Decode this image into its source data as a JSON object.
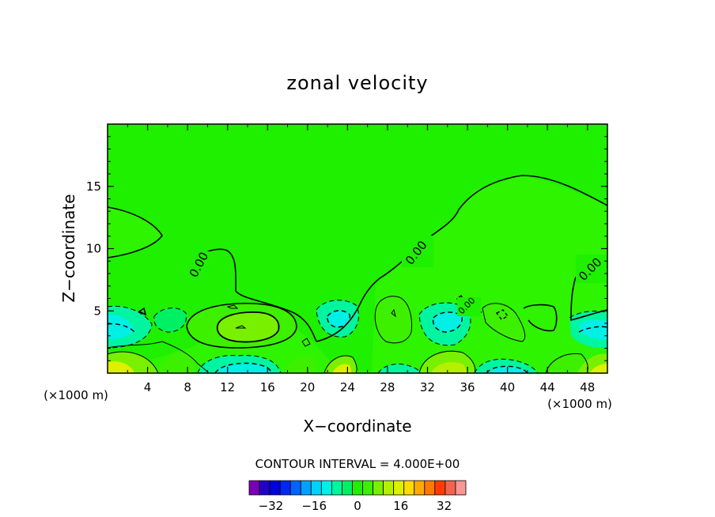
{
  "chart_data": {
    "type": "contour",
    "title": "zonal velocity",
    "xlabel": "X−coordinate",
    "ylabel": "Z−coordinate",
    "x_unit_label": "(×1000 m)",
    "xlim": [
      0,
      50
    ],
    "ylim": [
      0,
      20
    ],
    "x_ticks": [
      4,
      8,
      12,
      16,
      20,
      24,
      28,
      32,
      36,
      40,
      44,
      48
    ],
    "y_ticks": [
      5,
      10,
      15
    ],
    "contour_interval_text": "CONTOUR INTERVAL = 4.000E+00",
    "contour_interval": 4.0,
    "contour_labels": [
      "0.00",
      "0.00",
      "0.00",
      "0.00"
    ],
    "colorbar": {
      "tick_labels": [
        "−32",
        "−16",
        "0",
        "16",
        "32"
      ],
      "tick_values": [
        -32,
        -16,
        0,
        16,
        32
      ],
      "levels": [
        -40,
        -36,
        -32,
        -28,
        -24,
        -20,
        -16,
        -12,
        -8,
        -4,
        0,
        4,
        8,
        12,
        16,
        20,
        24,
        28,
        32,
        36,
        40
      ],
      "colors": [
        "#7b00b4",
        "#2200c8",
        "#0000dc",
        "#0028f0",
        "#0064ff",
        "#00a0ff",
        "#00d2ff",
        "#00f0e6",
        "#00f5a0",
        "#00f064",
        "#1ef000",
        "#3cf000",
        "#78f000",
        "#b4f000",
        "#dcf000",
        "#ffdc00",
        "#ffaa00",
        "#ff7800",
        "#ff3c00",
        "#f06450",
        "#fa9696"
      ]
    },
    "field_color_zero": "#1ef000"
  }
}
